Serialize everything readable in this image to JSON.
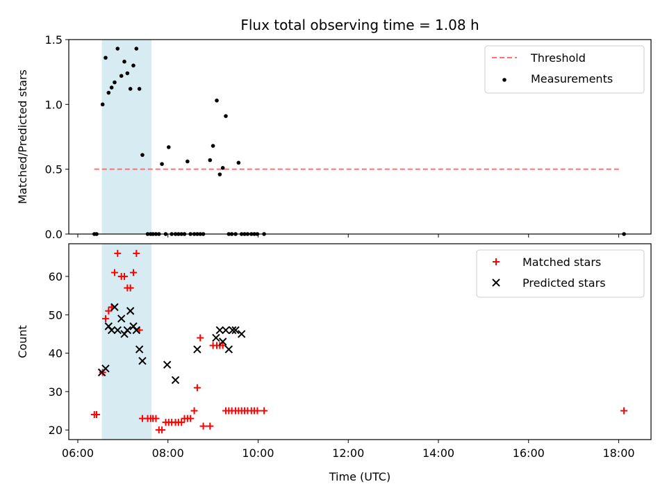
{
  "title": "Flux total observing time = 1.08 h",
  "chart_data": [
    {
      "type": "scatter",
      "title": "Flux total observing time = 1.08 h",
      "xlabel": "",
      "ylabel": "Matched/Predicted stars",
      "xlim": [
        "05:48",
        "18:43"
      ],
      "ylim": [
        0,
        1.5
      ],
      "yticks": [
        "0.0",
        "0.5",
        "1.0",
        "1.5"
      ],
      "legend_position": "upper right",
      "shaded_span": {
        "start": "06:32",
        "end": "07:38",
        "color": "#add8e6"
      },
      "series": [
        {
          "name": "Threshold",
          "kind": "dashed-line",
          "color": "#ff7070",
          "x": [
            "06:22",
            "18:02"
          ],
          "y": [
            0.5,
            0.5
          ]
        },
        {
          "name": "Measurements",
          "kind": "dots",
          "color": "#000000",
          "x": [
            "06:22",
            "06:25",
            "06:33",
            "06:37",
            "06:41",
            "06:45",
            "06:49",
            "06:53",
            "06:58",
            "07:02",
            "07:06",
            "07:10",
            "07:14",
            "07:18",
            "07:22",
            "07:26",
            "07:33",
            "07:37",
            "07:40",
            "07:44",
            "07:48",
            "07:52",
            "07:57",
            "08:01",
            "08:05",
            "08:10",
            "08:14",
            "08:18",
            "08:22",
            "08:26",
            "08:30",
            "08:35",
            "08:39",
            "08:43",
            "08:47",
            "08:56",
            "09:00",
            "09:05",
            "09:09",
            "09:13",
            "09:17",
            "09:21",
            "09:25",
            "09:30",
            "09:34",
            "09:38",
            "09:42",
            "09:46",
            "09:51",
            "09:55",
            "09:59",
            "10:08",
            "18:07"
          ],
          "y": [
            0,
            0,
            1.0,
            1.36,
            1.09,
            1.13,
            1.17,
            1.43,
            1.22,
            1.33,
            1.24,
            1.12,
            1.3,
            1.43,
            1.12,
            0.61,
            0,
            0,
            0,
            0,
            0,
            0.54,
            0,
            0.67,
            0,
            0,
            0,
            0,
            0,
            0.56,
            0,
            0,
            0,
            0,
            0,
            0.57,
            0.68,
            1.03,
            0.46,
            0.51,
            0.91,
            0,
            0,
            0,
            0.55,
            0,
            0,
            0,
            0,
            0,
            0,
            0,
            0
          ]
        }
      ]
    },
    {
      "type": "scatter",
      "title": "",
      "xlabel": "Time (UTC)",
      "ylabel": "Count",
      "xlim": [
        "05:48",
        "18:43"
      ],
      "ylim": [
        17.5,
        68.5
      ],
      "yticks": [
        "20",
        "30",
        "40",
        "50",
        "60"
      ],
      "xticks": [
        "06:00",
        "08:00",
        "10:00",
        "12:00",
        "14:00",
        "16:00",
        "18:00"
      ],
      "legend_position": "upper right",
      "shaded_span": {
        "start": "06:32",
        "end": "07:38",
        "color": "#add8e6"
      },
      "series": [
        {
          "name": "Matched stars",
          "marker": "plus",
          "color": "#ff0000",
          "x": [
            "06:22",
            "06:25",
            "06:33",
            "06:37",
            "06:41",
            "06:45",
            "06:49",
            "06:53",
            "06:58",
            "07:02",
            "07:06",
            "07:10",
            "07:14",
            "07:18",
            "07:22",
            "07:26",
            "07:33",
            "07:37",
            "07:40",
            "07:44",
            "07:48",
            "07:52",
            "07:57",
            "08:01",
            "08:05",
            "08:10",
            "08:14",
            "08:18",
            "08:22",
            "08:26",
            "08:30",
            "08:35",
            "08:39",
            "08:43",
            "08:47",
            "08:56",
            "09:00",
            "09:05",
            "09:09",
            "09:13",
            "09:17",
            "09:21",
            "09:25",
            "09:30",
            "09:34",
            "09:38",
            "09:42",
            "09:46",
            "09:51",
            "09:55",
            "09:59",
            "10:08",
            "18:07"
          ],
          "y": [
            24,
            24,
            35,
            49,
            51,
            52,
            61,
            66,
            60,
            60,
            57,
            57,
            61,
            66,
            46,
            23,
            23,
            23,
            23,
            23,
            20,
            20,
            22,
            22,
            22,
            22,
            22,
            22,
            23,
            23,
            23,
            25,
            31,
            44,
            21,
            21,
            42,
            42,
            42,
            42,
            25,
            25,
            25,
            25,
            25,
            25,
            25,
            25,
            25,
            25,
            25,
            25,
            25
          ]
        },
        {
          "name": "Predicted stars",
          "marker": "x",
          "color": "#000000",
          "x": [
            "06:32",
            "06:37",
            "06:41",
            "06:45",
            "06:49",
            "06:53",
            "06:58",
            "07:02",
            "07:06",
            "07:10",
            "07:14",
            "07:18",
            "07:22",
            "07:26",
            "07:59",
            "08:10",
            "08:39",
            "09:04",
            "09:09",
            "09:13",
            "09:17",
            "09:21",
            "09:26",
            "09:30",
            "09:38"
          ],
          "y": [
            35,
            36,
            47,
            46,
            52,
            46,
            49,
            45,
            46,
            51,
            47,
            46,
            41,
            38,
            37,
            33,
            41,
            44,
            46,
            43,
            46,
            41,
            46,
            46,
            45
          ]
        }
      ]
    }
  ]
}
